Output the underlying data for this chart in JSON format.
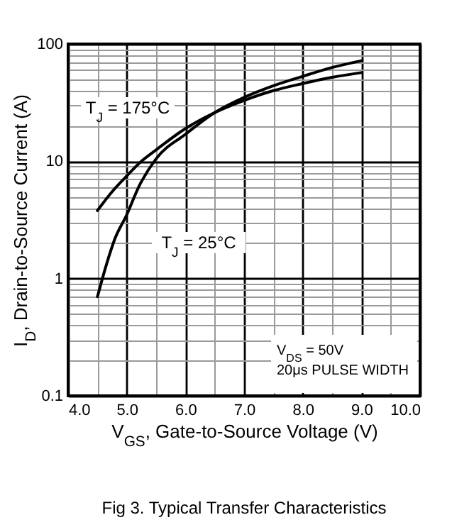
{
  "chart_data": {
    "type": "line",
    "title": "Fig 3.  Typical Transfer Characteristics",
    "xlabel": "V$_{GS}$, Gate-to-Source Voltage (V)",
    "ylabel": "I$_{D}$, Drain-to-Source Current (A)",
    "annotations": [
      "V$_{DS}$ = 50V",
      "20μs PULSE WIDTH"
    ],
    "log": "y",
    "grid": true,
    "legend": false,
    "xlim": [
      4,
      10
    ],
    "ylim": [
      0.1,
      100
    ],
    "xticks": [
      {
        "value": 4,
        "label": "4.0"
      },
      {
        "value": 4.5,
        "label": null
      },
      {
        "value": 5,
        "label": "5.0"
      },
      {
        "value": 5.5,
        "label": null
      },
      {
        "value": 6,
        "label": "6.0"
      },
      {
        "value": 6.5,
        "label": null
      },
      {
        "value": 7,
        "label": "7.0"
      },
      {
        "value": 7.5,
        "label": null
      },
      {
        "value": 8,
        "label": "8.0"
      },
      {
        "value": 8.5,
        "label": null
      },
      {
        "value": 9,
        "label": "9.0"
      },
      {
        "value": 9.5,
        "label": null
      },
      {
        "value": 10,
        "label": "10.0"
      }
    ],
    "yticks": [
      0.1,
      {
        "value": 0.2,
        "label": null
      },
      {
        "value": 0.3,
        "label": null
      },
      {
        "value": 0.4,
        "label": null
      },
      {
        "value": 0.5,
        "label": null
      },
      {
        "value": 0.6,
        "label": null
      },
      {
        "value": 0.7,
        "label": null
      },
      {
        "value": 0.8,
        "label": null
      },
      {
        "value": 0.9,
        "label": null
      },
      1,
      {
        "value": 2,
        "label": null
      },
      {
        "value": 3,
        "label": null
      },
      {
        "value": 4,
        "label": null
      },
      {
        "value": 5,
        "label": null
      },
      {
        "value": 6,
        "label": null
      },
      {
        "value": 7,
        "label": null
      },
      {
        "value": 8,
        "label": null
      },
      {
        "value": 9,
        "label": null
      },
      10,
      {
        "value": 20,
        "label": null
      },
      {
        "value": 30,
        "label": null
      },
      {
        "value": 40,
        "label": null
      },
      {
        "value": 50,
        "label": null
      },
      {
        "value": 60,
        "label": null
      },
      {
        "value": 70,
        "label": null
      },
      {
        "value": 80,
        "label": null
      },
      {
        "value": 90,
        "label": null
      },
      100
    ],
    "series": [
      {
        "name": "T$_{J}$ = 175°C",
        "color": "#000000",
        "x": [
          4.5,
          4.75,
          5.0,
          5.25,
          5.5,
          6.0,
          6.5,
          7.0,
          7.5,
          8.0,
          8.5,
          9.0
        ],
        "values": [
          3.8,
          5.5,
          7.5,
          10,
          12.5,
          19,
          26,
          33,
          40,
          46,
          52,
          57
        ]
      },
      {
        "name": "T$_{J}$ = 25°C",
        "color": "#000000",
        "x": [
          4.5,
          4.65,
          4.8,
          5.0,
          5.2,
          5.5,
          6.0,
          6.5,
          7.0,
          7.5,
          8.0,
          8.5,
          9.0
        ],
        "values": [
          0.7,
          1.3,
          2.2,
          3.5,
          6,
          10.5,
          17,
          26,
          35,
          44,
          53,
          63,
          72
        ]
      }
    ]
  }
}
